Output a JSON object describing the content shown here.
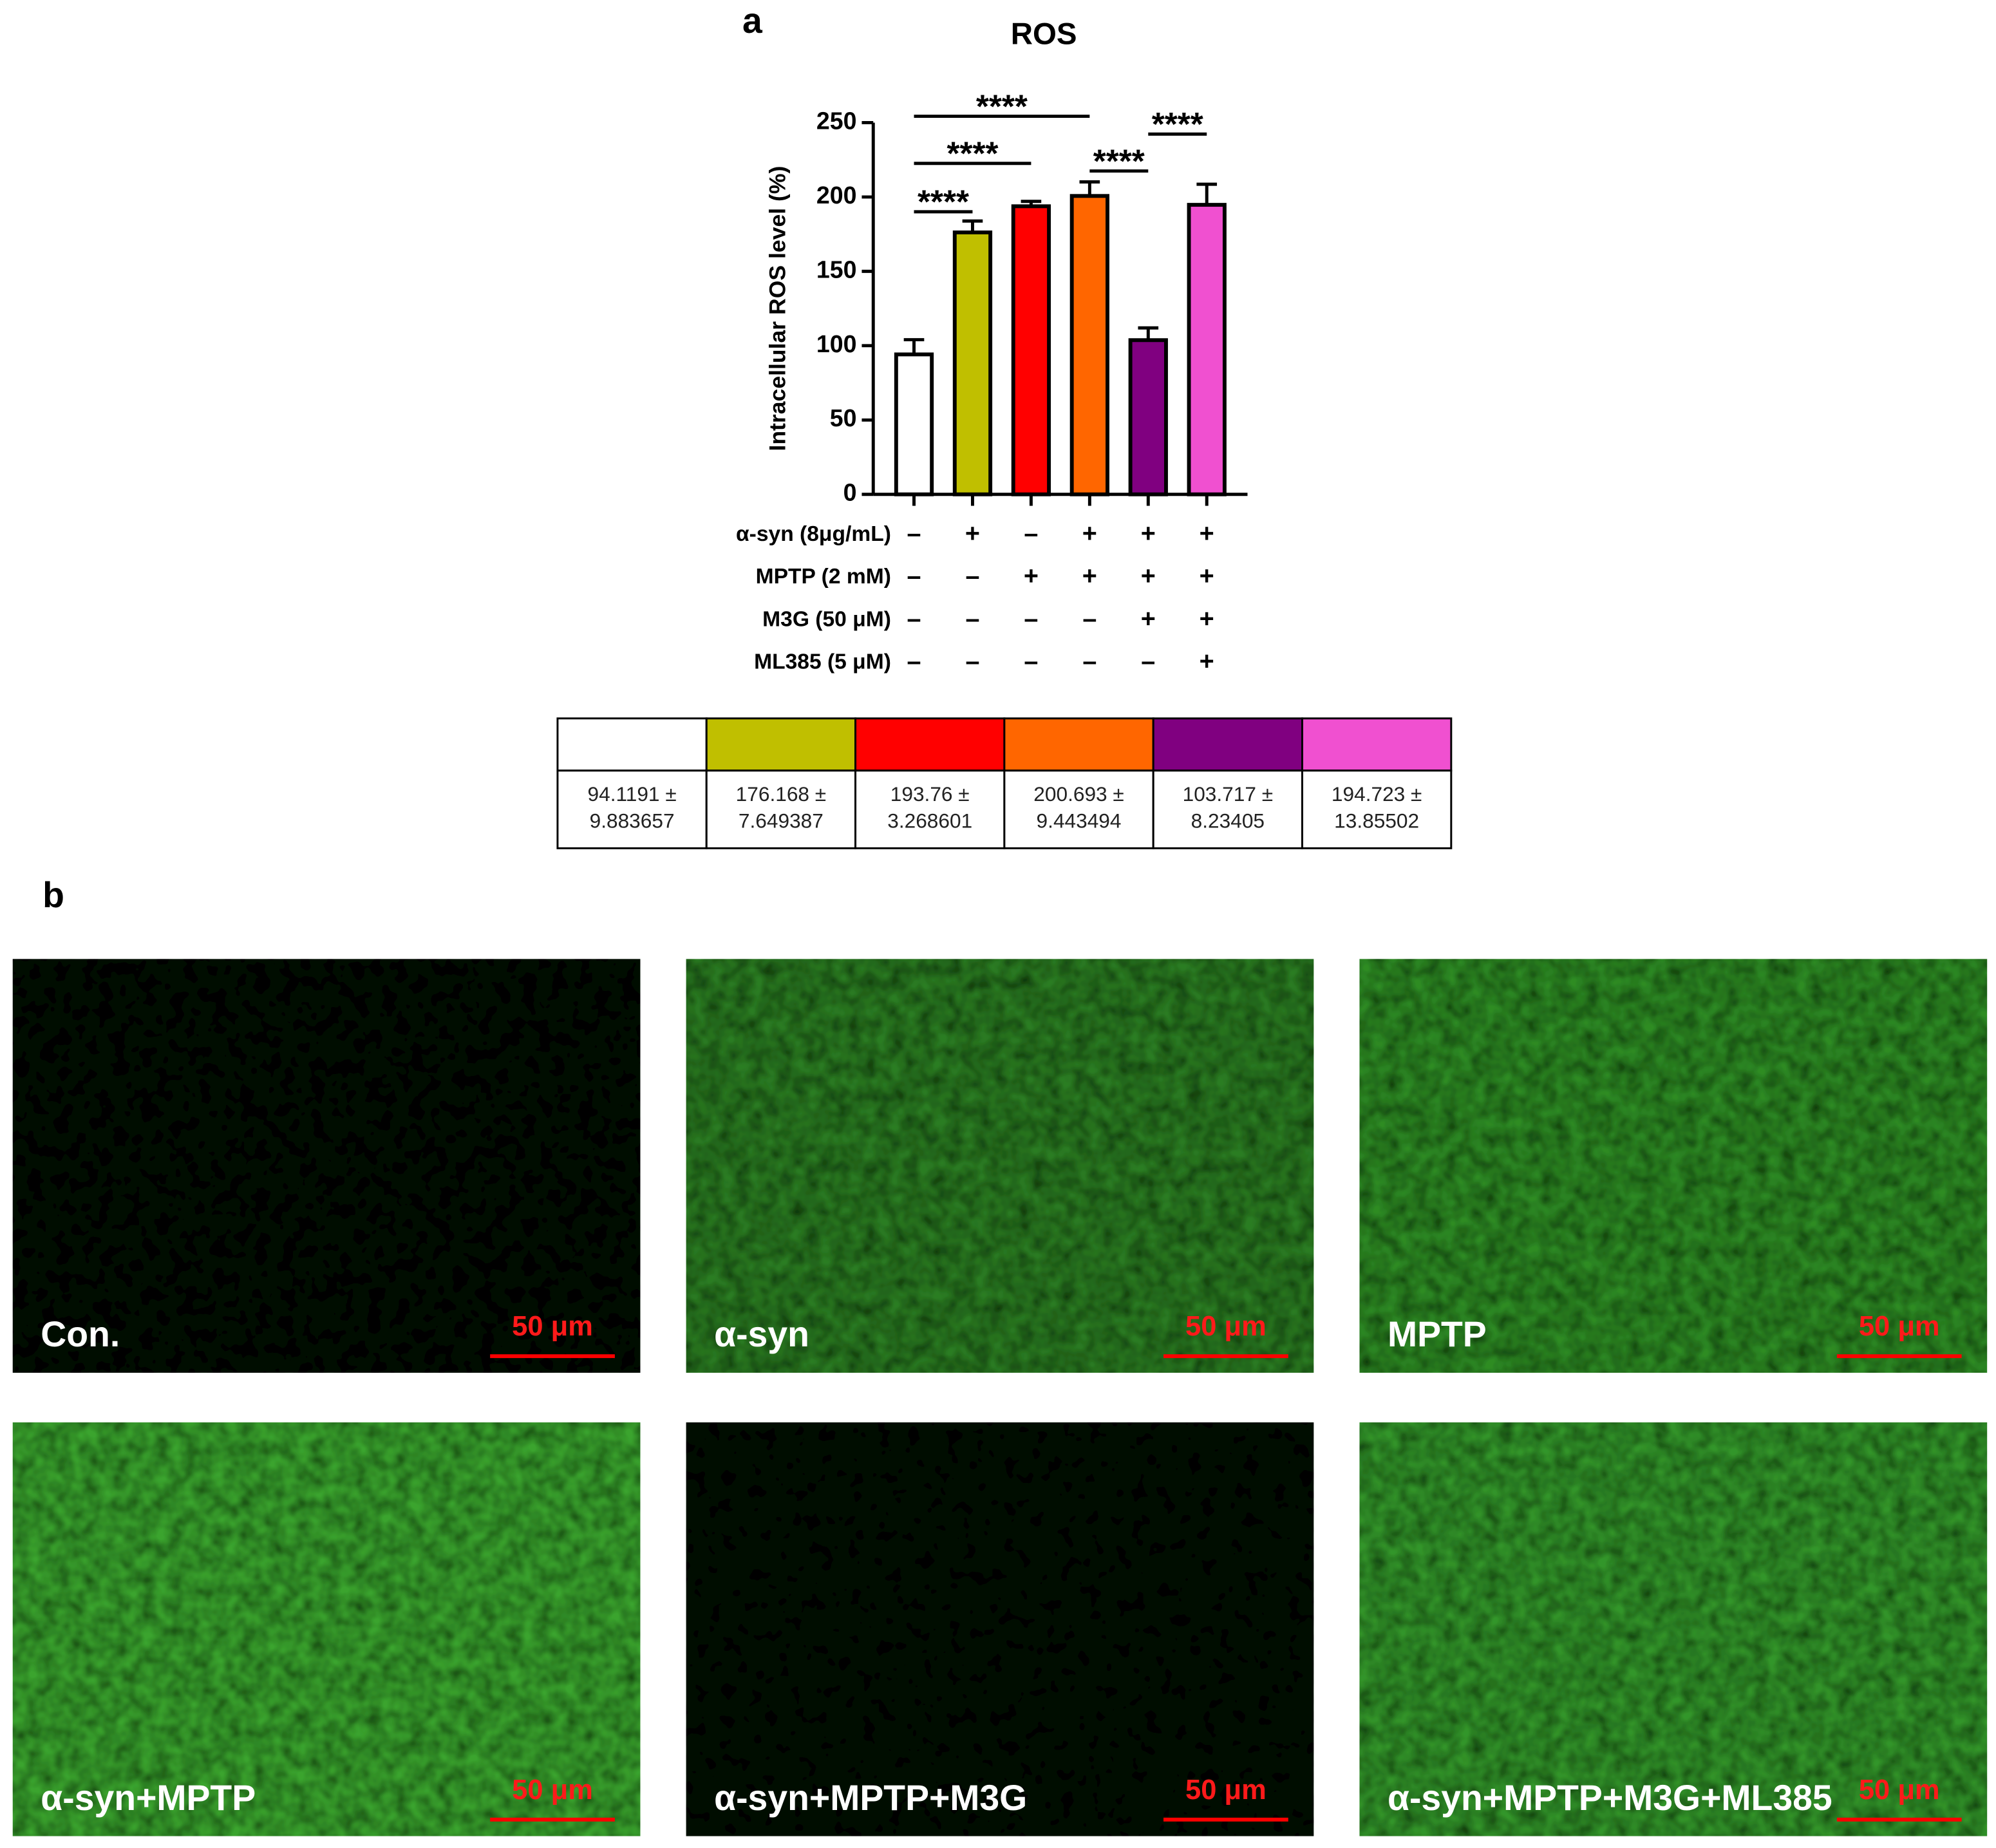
{
  "chart_data": {
    "type": "bar",
    "panel_label": "a",
    "title": "ROS",
    "y_label": "Intracellular ROS level (%)",
    "values": [
      94.1191,
      176.168,
      193.76,
      200.693,
      103.717,
      194.723
    ],
    "errors": [
      9.883657,
      7.649387,
      3.268601,
      9.443494,
      8.23405,
      13.85502
    ],
    "value_labels": [
      "94.1191 ± 9.883657",
      "176.168 ± 7.649387",
      "193.76 ± 3.268601",
      "200.693 ± 9.443494",
      "103.717 ± 8.23405",
      "194.723 ± 13.85502"
    ],
    "colors": [
      "#ffffff",
      "#c0bf00",
      "#ff0000",
      "#ff6600",
      "#800080",
      "#f050d0"
    ],
    "ylim": [
      0,
      250
    ],
    "yticks": [
      0,
      50,
      100,
      150,
      200,
      250
    ],
    "conditions": [
      {
        "label": "α-syn (8μg/mL)",
        "signs": [
          "–",
          "+",
          "–",
          "+",
          "+",
          "+"
        ]
      },
      {
        "label": "MPTP (2 mM)",
        "signs": [
          "–",
          "–",
          "+",
          "+",
          "+",
          "+"
        ]
      },
      {
        "label": "M3G (50 μM)",
        "signs": [
          "–",
          "–",
          "–",
          "–",
          "+",
          "+"
        ]
      },
      {
        "label": "ML385 (5 μM)",
        "signs": [
          "–",
          "–",
          "–",
          "–",
          "–",
          "+"
        ]
      }
    ],
    "annotations": [
      {
        "text": "****",
        "between": [
          0,
          1
        ]
      },
      {
        "text": "****",
        "between": [
          0,
          2
        ]
      },
      {
        "text": "****",
        "between": [
          0,
          3
        ]
      },
      {
        "text": "****",
        "between": [
          3,
          4
        ]
      },
      {
        "text": "****",
        "between": [
          4,
          5
        ]
      }
    ]
  },
  "panel_b": {
    "label": "b",
    "images": [
      {
        "caption": "Con.",
        "scale_bar": "50 μm"
      },
      {
        "caption": "α-syn",
        "scale_bar": "50 μm"
      },
      {
        "caption": "MPTP",
        "scale_bar": "50 μm"
      },
      {
        "caption": "α-syn+MPTP",
        "scale_bar": "50 μm"
      },
      {
        "caption": "α-syn+MPTP+M3G",
        "scale_bar": "50 μm"
      },
      {
        "caption": "α-syn+MPTP+M3G+ML385",
        "scale_bar": "50 μm"
      }
    ]
  }
}
